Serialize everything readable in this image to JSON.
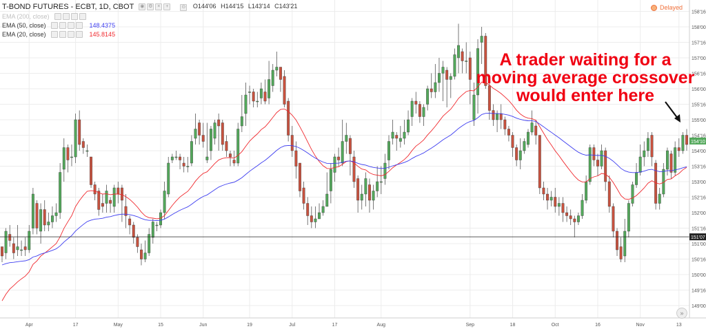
{
  "header": {
    "title": "T-BOND FUTURES - ECBT, 1D, CBOT",
    "ohlc": [
      "O144'06",
      "H144'15",
      "L143'14",
      "C143'21"
    ],
    "delayed": "Delayed"
  },
  "indicators": [
    {
      "label": "EMA (200, close)",
      "value": "",
      "color": "#c8c8c8"
    },
    {
      "label": "EMA (50, close)",
      "value": "148.4375",
      "color": "#3c3cf0"
    },
    {
      "label": "EMA (20, close)",
      "value": "145.8145",
      "color": "#f0282d"
    }
  ],
  "annotation": {
    "text": "A trader waiting for a moving average crossover would enter here"
  },
  "colors": {
    "up": "#53a85b",
    "down": "#c8523f",
    "wick": "#555555",
    "ema50": "#3c3cf0",
    "ema20": "#f0282d",
    "grid": "#ececec",
    "hline": "#222222",
    "annotation": "#f00012"
  },
  "chart_data": {
    "type": "candlestick",
    "title": "T-BOND FUTURES - ECBT, 1D, CBOT",
    "xlabel": "",
    "ylabel": "",
    "x_ticks": [
      "Apr",
      "17",
      "May",
      "15",
      "Jun",
      "19",
      "Jul",
      "17",
      "Aug",
      "Sep",
      "18",
      "Oct",
      "16",
      "Nov",
      "13"
    ],
    "y_ticks": [
      "158'16",
      "158'00",
      "157'16",
      "157'00",
      "156'16",
      "156'00",
      "155'16",
      "155'00",
      "154'16",
      "154'00",
      "153'16",
      "153'00",
      "152'16",
      "152'00",
      "151'16",
      "151'00",
      "150'16",
      "150'00",
      "149'16",
      "149'00"
    ],
    "ylim": [
      148.8,
      158.6
    ],
    "price_labels": {
      "last": "154'10",
      "hline": "151'07"
    },
    "last_price": 154.3125,
    "hline_price": 151.21875,
    "candles": [
      [
        150.9,
        150.6,
        150.9,
        150.4
      ],
      [
        150.7,
        151.4,
        151.5,
        150.5
      ],
      [
        151.3,
        151.1,
        151.6,
        150.9
      ],
      [
        151.0,
        150.7,
        151.2,
        150.5
      ],
      [
        150.8,
        150.9,
        151.6,
        150.6
      ],
      [
        150.8,
        150.8,
        151.1,
        150.6
      ],
      [
        150.9,
        150.8,
        151.2,
        150.6
      ],
      [
        150.8,
        151.4,
        151.6,
        150.7
      ],
      [
        151.5,
        152.6,
        152.8,
        151.3
      ],
      [
        152.3,
        151.5,
        152.4,
        151.3
      ],
      [
        151.4,
        152.1,
        152.3,
        151.0
      ],
      [
        152.1,
        151.6,
        152.4,
        151.4
      ],
      [
        151.6,
        151.7,
        152.0,
        151.4
      ],
      [
        151.7,
        151.9,
        152.2,
        151.5
      ],
      [
        151.9,
        152.0,
        152.3,
        151.7
      ],
      [
        152.0,
        153.3,
        153.6,
        151.8
      ],
      [
        153.4,
        154.1,
        154.4,
        153.0
      ],
      [
        154.1,
        153.7,
        154.2,
        153.3
      ],
      [
        153.8,
        153.8,
        154.2,
        153.5
      ],
      [
        153.8,
        155.0,
        155.2,
        153.6
      ],
      [
        155.0,
        154.2,
        155.3,
        154.0
      ],
      [
        154.3,
        154.1,
        154.4,
        153.9
      ],
      [
        154.0,
        154.0,
        154.2,
        153.8
      ],
      [
        153.8,
        152.9,
        153.8,
        152.8
      ],
      [
        152.9,
        152.6,
        153.0,
        152.4
      ],
      [
        152.7,
        152.1,
        152.8,
        151.9
      ],
      [
        152.3,
        152.2,
        152.6,
        152.0
      ],
      [
        152.3,
        152.7,
        152.9,
        152.0
      ],
      [
        152.4,
        152.3,
        152.5,
        152.0
      ],
      [
        152.2,
        152.8,
        152.9,
        152.0
      ],
      [
        152.8,
        152.6,
        153.0,
        152.3
      ],
      [
        152.8,
        152.4,
        152.9,
        151.7
      ],
      [
        152.2,
        151.9,
        152.6,
        151.5
      ],
      [
        151.8,
        151.6,
        151.9,
        151.3
      ],
      [
        151.6,
        151.2,
        151.7,
        151.0
      ],
      [
        151.2,
        150.9,
        151.3,
        150.7
      ],
      [
        150.8,
        150.5,
        151.0,
        150.3
      ],
      [
        150.5,
        150.7,
        151.1,
        150.4
      ],
      [
        150.7,
        151.3,
        151.5,
        150.6
      ],
      [
        151.2,
        151.7,
        151.8,
        151.0
      ],
      [
        151.6,
        151.6,
        151.7,
        151.4
      ],
      [
        151.6,
        152.0,
        152.1,
        151.5
      ],
      [
        152.0,
        152.7,
        153.0,
        151.8
      ],
      [
        152.6,
        153.6,
        153.8,
        152.5
      ],
      [
        153.7,
        153.8,
        153.9,
        153.6
      ],
      [
        153.8,
        153.8,
        154.0,
        153.7
      ],
      [
        153.8,
        153.7,
        153.9,
        153.4
      ],
      [
        153.6,
        153.5,
        153.8,
        153.3
      ],
      [
        153.5,
        153.5,
        153.8,
        153.3
      ],
      [
        153.6,
        154.3,
        154.5,
        153.5
      ],
      [
        154.4,
        154.7,
        155.2,
        154.2
      ],
      [
        154.9,
        154.5,
        155.0,
        154.2
      ],
      [
        154.5,
        154.3,
        154.9,
        154.1
      ],
      [
        153.7,
        153.8,
        154.9,
        153.6
      ],
      [
        154.0,
        154.7,
        154.8,
        153.7
      ],
      [
        154.4,
        154.9,
        155.0,
        154.2
      ],
      [
        155.0,
        154.8,
        155.2,
        154.0
      ],
      [
        154.9,
        154.2,
        155.0,
        154.0
      ],
      [
        154.3,
        154.0,
        154.5,
        153.8
      ],
      [
        153.9,
        153.8,
        154.0,
        153.5
      ],
      [
        153.7,
        153.6,
        154.0,
        153.5
      ],
      [
        153.6,
        154.7,
        154.9,
        153.5
      ],
      [
        154.8,
        155.1,
        155.8,
        154.6
      ],
      [
        155.2,
        155.8,
        156.2,
        154.8
      ],
      [
        155.9,
        155.9,
        156.1,
        155.5
      ],
      [
        155.9,
        155.6,
        156.0,
        155.4
      ],
      [
        155.6,
        155.6,
        155.9,
        155.4
      ],
      [
        155.7,
        156.0,
        156.2,
        155.5
      ],
      [
        155.9,
        155.6,
        156.3,
        155.5
      ],
      [
        155.7,
        156.3,
        156.9,
        155.5
      ],
      [
        156.1,
        156.6,
        156.8,
        155.9
      ],
      [
        156.6,
        156.7,
        157.2,
        156.4
      ],
      [
        156.7,
        156.3,
        156.7,
        155.9
      ],
      [
        156.4,
        155.5,
        156.6,
        155.4
      ],
      [
        155.6,
        154.5,
        155.7,
        154.3
      ],
      [
        154.5,
        154.0,
        154.8,
        153.8
      ],
      [
        154.0,
        153.5,
        154.3,
        153.1
      ],
      [
        153.6,
        152.7,
        153.6,
        152.5
      ],
      [
        152.8,
        152.3,
        153.0,
        152.1
      ],
      [
        152.3,
        151.9,
        152.5,
        151.6
      ],
      [
        151.9,
        151.7,
        152.2,
        151.5
      ],
      [
        151.7,
        151.8,
        152.2,
        151.5
      ],
      [
        151.8,
        152.0,
        152.3,
        151.8
      ],
      [
        152.0,
        152.2,
        152.4,
        151.9
      ],
      [
        152.2,
        152.6,
        153.3,
        152.2
      ],
      [
        152.7,
        153.4,
        153.6,
        152.3
      ],
      [
        153.3,
        153.8,
        153.9,
        153.0
      ],
      [
        153.8,
        153.7,
        154.1,
        153.5
      ],
      [
        153.6,
        154.3,
        155.0,
        153.5
      ],
      [
        154.3,
        154.5,
        154.9,
        153.9
      ],
      [
        154.4,
        153.9,
        154.5,
        153.2
      ],
      [
        153.8,
        153.0,
        154.0,
        152.8
      ],
      [
        153.1,
        152.4,
        153.2,
        152.0
      ],
      [
        152.4,
        152.6,
        152.9,
        152.1
      ],
      [
        152.6,
        153.1,
        153.3,
        152.2
      ],
      [
        152.9,
        152.4,
        153.1,
        152.0
      ],
      [
        152.4,
        152.7,
        152.9,
        152.1
      ],
      [
        152.7,
        153.0,
        153.5,
        152.5
      ],
      [
        153.0,
        153.0,
        153.5,
        152.6
      ],
      [
        153.1,
        153.6,
        153.9,
        152.9
      ],
      [
        153.7,
        154.3,
        154.5,
        153.4
      ],
      [
        154.4,
        154.6,
        155.0,
        154.2
      ],
      [
        154.5,
        154.4,
        154.6,
        154.0
      ],
      [
        154.3,
        154.4,
        154.8,
        154.1
      ],
      [
        154.4,
        154.6,
        155.0,
        154.2
      ],
      [
        154.6,
        155.0,
        155.3,
        154.5
      ],
      [
        155.1,
        155.6,
        155.7,
        154.8
      ],
      [
        155.6,
        155.5,
        155.9,
        155.2
      ],
      [
        155.5,
        155.1,
        155.6,
        154.9
      ],
      [
        155.1,
        155.4,
        155.5,
        154.8
      ],
      [
        155.5,
        156.0,
        156.1,
        155.3
      ],
      [
        156.0,
        155.9,
        156.5,
        155.7
      ],
      [
        155.9,
        156.2,
        156.8,
        155.7
      ],
      [
        156.2,
        156.5,
        157.0,
        155.9
      ],
      [
        156.5,
        156.7,
        156.9,
        155.6
      ],
      [
        156.6,
        156.3,
        156.7,
        155.4
      ],
      [
        156.3,
        156.4,
        156.5,
        155.7
      ],
      [
        156.4,
        157.1,
        157.3,
        156.3
      ],
      [
        157.0,
        157.4,
        158.1,
        156.5
      ],
      [
        157.2,
        156.9,
        157.3,
        156.5
      ],
      [
        156.9,
        156.9,
        157.5,
        156.5
      ],
      [
        157.0,
        156.3,
        157.2,
        155.5
      ],
      [
        155.0,
        155.8,
        156.2,
        154.8
      ],
      [
        155.8,
        157.3,
        157.6,
        155.2
      ],
      [
        157.5,
        157.7,
        158.0,
        156.8
      ],
      [
        157.7,
        156.1,
        157.8,
        156.0
      ],
      [
        156.1,
        155.3,
        156.2,
        155.0
      ],
      [
        155.3,
        155.0,
        155.5,
        154.8
      ],
      [
        155.0,
        155.2,
        155.3,
        154.6
      ],
      [
        155.2,
        155.0,
        155.5,
        154.7
      ],
      [
        155.0,
        154.7,
        155.1,
        154.5
      ],
      [
        154.7,
        154.5,
        154.8,
        154.3
      ],
      [
        154.5,
        154.1,
        154.6,
        153.8
      ],
      [
        154.1,
        153.7,
        154.2,
        153.5
      ],
      [
        153.7,
        154.0,
        154.4,
        153.4
      ],
      [
        154.0,
        154.3,
        154.4,
        153.9
      ],
      [
        154.2,
        154.6,
        154.7,
        154.1
      ],
      [
        154.6,
        154.9,
        155.3,
        154.5
      ],
      [
        154.8,
        154.5,
        155.0,
        154.2
      ],
      [
        154.5,
        152.8,
        154.5,
        152.6
      ],
      [
        152.8,
        152.6,
        153.0,
        152.4
      ],
      [
        152.6,
        152.4,
        152.8,
        152.1
      ],
      [
        152.4,
        152.5,
        152.7,
        152.2
      ],
      [
        152.5,
        152.2,
        152.8,
        152.0
      ],
      [
        152.2,
        152.3,
        152.5,
        151.9
      ],
      [
        152.3,
        152.0,
        152.5,
        151.7
      ],
      [
        152.0,
        151.9,
        152.2,
        151.7
      ],
      [
        151.9,
        151.8,
        152.1,
        151.6
      ],
      [
        151.8,
        151.7,
        151.9,
        151.2
      ],
      [
        151.7,
        151.9,
        152.0,
        151.6
      ],
      [
        151.9,
        152.4,
        152.6,
        151.8
      ],
      [
        152.4,
        153.0,
        153.2,
        152.3
      ],
      [
        153.0,
        154.1,
        154.2,
        152.9
      ],
      [
        154.1,
        153.7,
        154.2,
        153.5
      ],
      [
        153.7,
        153.5,
        153.9,
        153.2
      ],
      [
        153.5,
        154.0,
        154.2,
        153.4
      ],
      [
        154.0,
        153.0,
        154.1,
        152.7
      ],
      [
        153.0,
        152.2,
        153.2,
        152.0
      ],
      [
        152.2,
        151.4,
        152.3,
        151.2
      ],
      [
        151.4,
        150.8,
        151.5,
        150.6
      ],
      [
        150.9,
        150.5,
        151.2,
        150.4
      ],
      [
        150.6,
        151.4,
        151.8,
        150.4
      ],
      [
        151.4,
        152.3,
        152.4,
        151.2
      ],
      [
        152.3,
        152.9,
        153.0,
        152.2
      ],
      [
        152.9,
        153.3,
        153.6,
        152.8
      ],
      [
        153.3,
        153.8,
        154.2,
        153.2
      ],
      [
        153.8,
        154.0,
        154.3,
        153.5
      ],
      [
        154.0,
        154.4,
        154.6,
        153.8
      ],
      [
        154.5,
        153.8,
        154.6,
        153.5
      ],
      [
        153.6,
        152.3,
        153.7,
        152.1
      ],
      [
        152.3,
        152.6,
        152.8,
        152.1
      ],
      [
        152.6,
        153.4,
        153.6,
        152.5
      ],
      [
        153.4,
        154.0,
        154.1,
        153.2
      ],
      [
        153.9,
        153.3,
        154.0,
        153.1
      ],
      [
        153.3,
        154.1,
        154.3,
        153.2
      ],
      [
        154.1,
        154.0,
        154.4,
        153.8
      ],
      [
        154.0,
        154.5,
        154.6,
        153.9
      ],
      [
        154.5,
        154.2,
        154.7,
        154.0
      ]
    ]
  }
}
